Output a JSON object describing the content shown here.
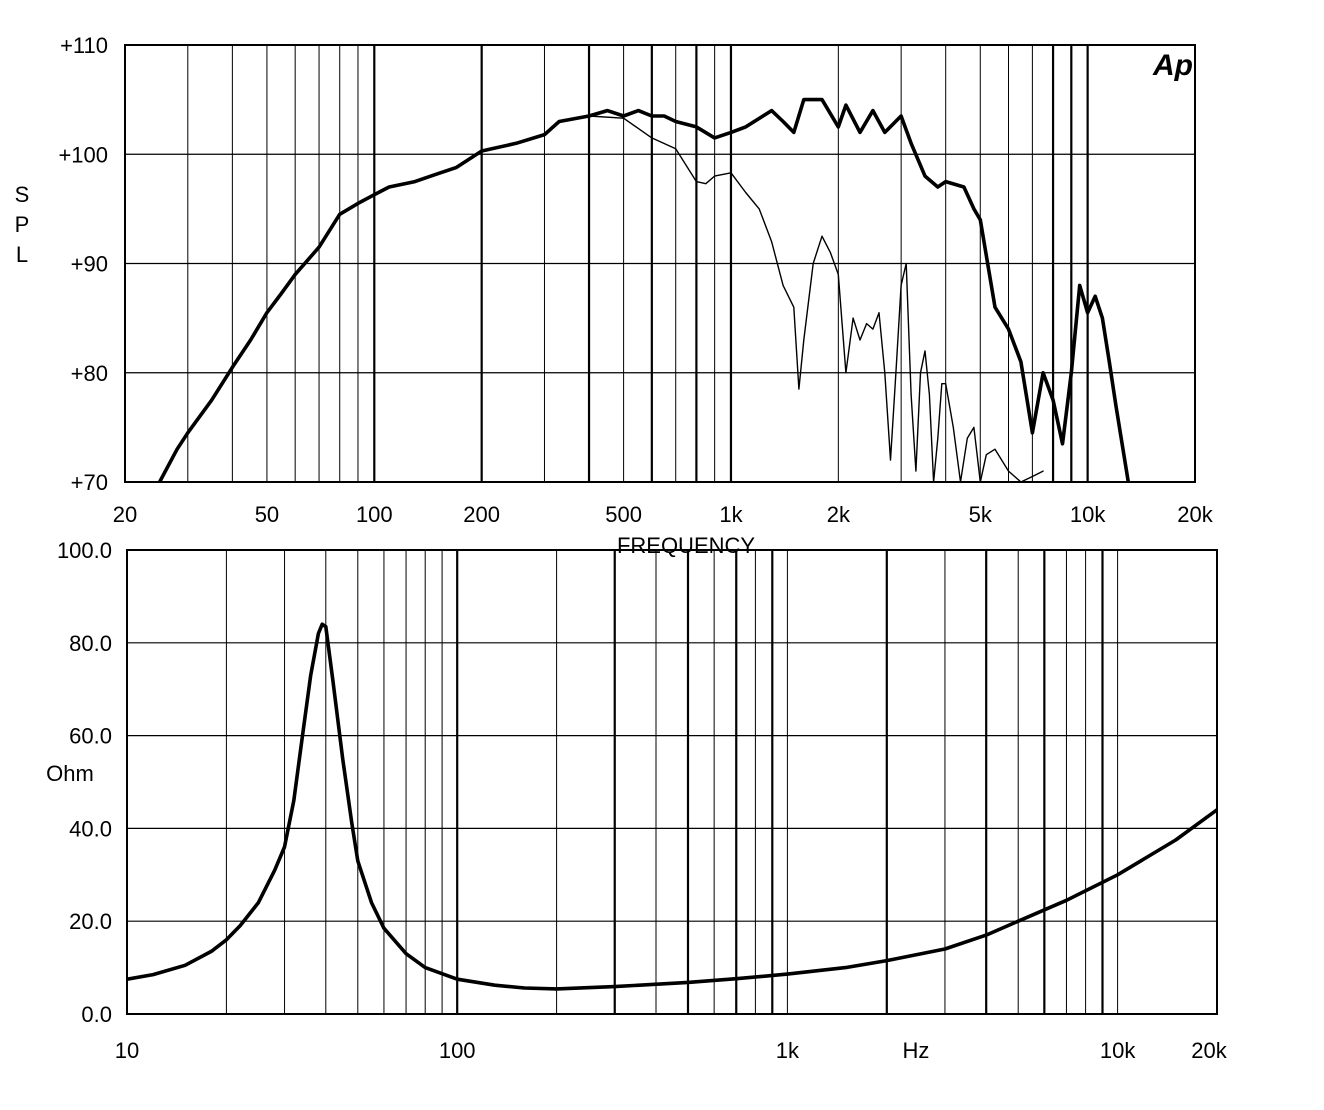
{
  "chart_data": [
    {
      "type": "line",
      "title": "",
      "xlabel": "FREQUENCY",
      "ylabel": "SPL",
      "logo": "Ap",
      "x_scale": "log",
      "xlim": [
        20,
        20000
      ],
      "ylim": [
        70,
        110
      ],
      "x_ticks": [
        {
          "value": 20,
          "label": "20"
        },
        {
          "value": 50,
          "label": "50"
        },
        {
          "value": 100,
          "label": "100"
        },
        {
          "value": 200,
          "label": "200"
        },
        {
          "value": 500,
          "label": "500"
        },
        {
          "value": 1000,
          "label": "1k"
        },
        {
          "value": 2000,
          "label": "2k"
        },
        {
          "value": 5000,
          "label": "5k"
        },
        {
          "value": 10000,
          "label": "10k"
        },
        {
          "value": 20000,
          "label": "20k"
        }
      ],
      "y_ticks": [
        {
          "value": 110,
          "label": "+110"
        },
        {
          "value": 100,
          "label": "+100"
        },
        {
          "value": 90,
          "label": "+90"
        },
        {
          "value": 80,
          "label": "+80"
        },
        {
          "value": 70,
          "label": "+70"
        }
      ],
      "grid": true,
      "series": [
        {
          "style": "thick",
          "x": [
            25,
            28,
            30,
            35,
            40,
            45,
            50,
            55,
            60,
            70,
            80,
            90,
            100,
            110,
            130,
            150,
            170,
            200,
            250,
            300,
            330,
            400,
            450,
            500,
            550,
            600,
            650,
            700,
            800,
            900,
            1000,
            1100,
            1300,
            1400,
            1500,
            1600,
            1800,
            2000,
            2100,
            2300,
            2500,
            2700,
            3000,
            3200,
            3500,
            3800,
            4000,
            4500,
            4800,
            5000,
            5500,
            6000,
            6500,
            7000,
            7500,
            8000,
            8500,
            9000,
            9500,
            10000,
            10500,
            11000,
            11500,
            12000,
            13000
          ],
          "y": [
            70,
            73,
            74.5,
            77.5,
            80.5,
            83,
            85.5,
            87.3,
            89,
            91.5,
            94.5,
            95.5,
            96.3,
            97,
            97.5,
            98.2,
            98.8,
            100.3,
            101,
            101.8,
            103,
            103.5,
            104,
            103.5,
            104,
            103.5,
            103.5,
            103,
            102.5,
            101.5,
            102,
            102.5,
            104,
            103,
            102,
            105,
            105,
            102.5,
            104.5,
            102,
            104,
            102,
            103.5,
            101,
            98,
            97,
            97.5,
            97,
            95,
            94,
            86,
            84,
            81,
            74.5,
            80,
            77.5,
            73.5,
            80,
            88,
            85.5,
            87,
            85,
            81,
            77,
            70
          ]
        },
        {
          "style": "thin",
          "x": [
            400,
            500,
            600,
            700,
            800,
            850,
            900,
            1000,
            1100,
            1200,
            1300,
            1400,
            1500,
            1550,
            1600,
            1700,
            1800,
            1900,
            2000,
            2100,
            2200,
            2300,
            2400,
            2500,
            2600,
            2700,
            2800,
            2900,
            3000,
            3100,
            3200,
            3300,
            3400,
            3500,
            3600,
            3700,
            3800,
            3900,
            4000,
            4200,
            4400,
            4600,
            4800,
            5000,
            5200,
            5500,
            6000,
            6500,
            7000,
            7500
          ],
          "y": [
            103.5,
            103.3,
            101.5,
            100.5,
            97.5,
            97.3,
            98,
            98.3,
            96.5,
            95,
            92,
            88,
            86,
            78.5,
            83,
            90,
            92.5,
            91,
            89,
            80,
            85,
            83,
            84.5,
            84,
            85.5,
            80,
            72,
            80,
            88,
            90,
            78,
            71,
            80,
            82,
            78,
            70,
            74,
            79,
            79,
            75,
            70,
            74,
            75,
            70,
            72.5,
            73,
            71,
            70,
            70.5,
            71
          ]
        }
      ]
    },
    {
      "type": "line",
      "title": "",
      "xlabel": "Hz",
      "ylabel": "Ohm",
      "x_scale": "log",
      "xlim": [
        10,
        20000
      ],
      "ylim": [
        0,
        100
      ],
      "x_ticks": [
        {
          "value": 10,
          "label": "10"
        },
        {
          "value": 100,
          "label": "100"
        },
        {
          "value": 1000,
          "label": "1k"
        },
        {
          "value": 10000,
          "label": "10k"
        },
        {
          "value": 20000,
          "label": "20k"
        }
      ],
      "y_ticks": [
        {
          "value": 100,
          "label": "100.0"
        },
        {
          "value": 80,
          "label": "80.0"
        },
        {
          "value": 60,
          "label": "60.0"
        },
        {
          "value": 40,
          "label": "40.0"
        },
        {
          "value": 20,
          "label": "20.0"
        },
        {
          "value": 0,
          "label": "0.0"
        }
      ],
      "grid": true,
      "series": [
        {
          "style": "thick",
          "x": [
            10,
            12,
            15,
            18,
            20,
            22,
            25,
            28,
            30,
            32,
            34,
            36,
            38,
            39,
            40,
            42,
            45,
            48,
            50,
            55,
            60,
            70,
            80,
            100,
            130,
            160,
            200,
            300,
            500,
            700,
            1000,
            1500,
            2000,
            3000,
            4000,
            5000,
            7000,
            10000,
            15000,
            20000
          ],
          "y": [
            7.5,
            8.5,
            10.5,
            13.5,
            16,
            19,
            24,
            31,
            36,
            46,
            60,
            73,
            82,
            84,
            83.5,
            72,
            55,
            41,
            33,
            24,
            18.5,
            13,
            10,
            7.5,
            6.2,
            5.6,
            5.4,
            5.9,
            6.8,
            7.6,
            8.6,
            10,
            11.5,
            14,
            17,
            20,
            24.5,
            30,
            37.5,
            44
          ]
        }
      ]
    }
  ]
}
